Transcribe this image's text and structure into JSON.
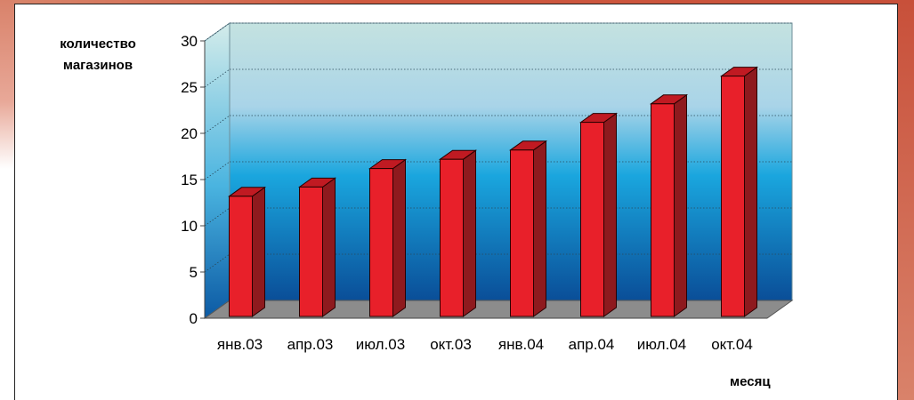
{
  "chart_data": {
    "type": "bar",
    "ylabel": "количество магазинов",
    "xlabel": "месяц",
    "categories": [
      "янв.03",
      "апр.03",
      "июл.03",
      "окт.03",
      "янв.04",
      "апр.04",
      "июл.04",
      "окт.04"
    ],
    "values": [
      13,
      14,
      16,
      17,
      18,
      21,
      23,
      26
    ],
    "ylim": [
      0,
      30
    ],
    "yticks": [
      0,
      5,
      10,
      15,
      20,
      25,
      30
    ],
    "grid": true,
    "legend": "none",
    "colors": {
      "bar_front": "#e8202a",
      "bar_side": "#8e1a1e",
      "bar_top": "#c01a22",
      "wall_top": "#c4e2e0",
      "wall_bottom": "#0a4e98",
      "floor": "#8c8c8c"
    }
  }
}
